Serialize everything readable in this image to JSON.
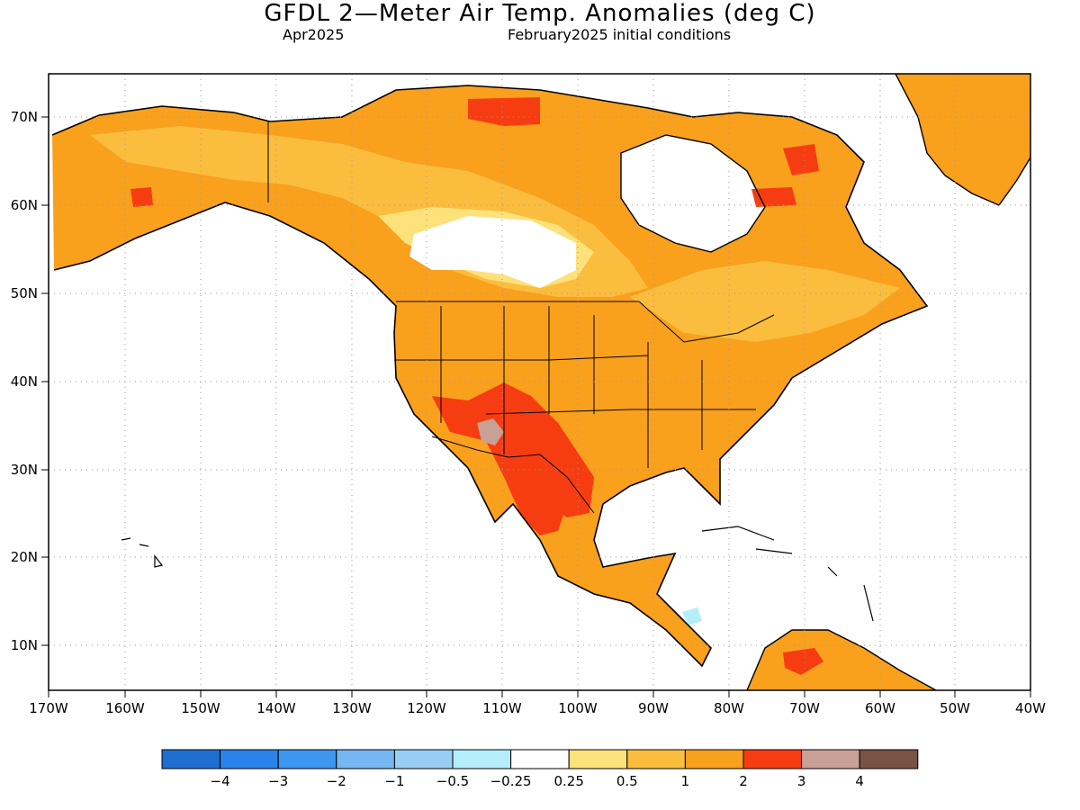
{
  "title": "GFDL 2—Meter Air Temp. Anomalies (deg C)",
  "subtitle_left": "Apr2025",
  "subtitle_right": "February2025 initial conditions",
  "map": {
    "lon_range": [
      -170,
      -40
    ],
    "lat_range": [
      5,
      75
    ],
    "grid": "dotted",
    "x_ticks": [
      "170W",
      "160W",
      "150W",
      "140W",
      "130W",
      "120W",
      "110W",
      "100W",
      "90W",
      "80W",
      "70W",
      "60W",
      "50W",
      "40W"
    ],
    "y_ticks": [
      "10N",
      "20N",
      "30N",
      "40N",
      "50N",
      "60N",
      "70N"
    ]
  },
  "legend": {
    "colors": [
      "#1f6fd1",
      "#2b82ea",
      "#3d96f0",
      "#76b6f3",
      "#98cef6",
      "#b4eefa",
      "#ffffff",
      "#fde17a",
      "#fbbd3e",
      "#f9a01c",
      "#f63d12",
      "#c9a096",
      "#7a5344"
    ],
    "labels": [
      "−4",
      "−3",
      "−2",
      "−1",
      "−0.5",
      "−0.25",
      "0.25",
      "0.5",
      "1",
      "2",
      "3",
      "4"
    ]
  }
}
